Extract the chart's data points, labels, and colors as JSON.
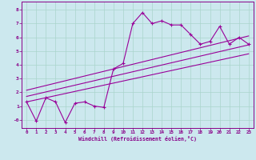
{
  "xlabel": "Windchill (Refroidissement éolien,°C)",
  "background_color": "#cce8ee",
  "grid_color": "#aad4cc",
  "line_color": "#990099",
  "spine_color": "#880088",
  "xlim": [
    -0.5,
    23.5
  ],
  "ylim": [
    -0.6,
    8.6
  ],
  "xticks": [
    0,
    1,
    2,
    3,
    4,
    5,
    6,
    7,
    8,
    9,
    10,
    11,
    12,
    13,
    14,
    15,
    16,
    17,
    18,
    19,
    20,
    21,
    22,
    23
  ],
  "yticks": [
    0,
    1,
    2,
    3,
    4,
    5,
    6,
    7,
    8
  ],
  "ytick_labels": [
    "-0",
    "1",
    "2",
    "3",
    "4",
    "5",
    "6",
    "7",
    "8"
  ],
  "data_x": [
    0,
    1,
    2,
    3,
    4,
    5,
    6,
    7,
    8,
    9,
    10,
    11,
    12,
    13,
    14,
    15,
    16,
    17,
    18,
    19,
    20,
    21,
    22,
    23
  ],
  "data_y": [
    1.3,
    -0.1,
    1.6,
    1.3,
    -0.2,
    1.2,
    1.3,
    1.0,
    0.9,
    3.7,
    4.1,
    7.0,
    7.8,
    7.0,
    7.2,
    6.9,
    6.9,
    6.2,
    5.5,
    5.7,
    6.8,
    5.5,
    6.0,
    5.5
  ],
  "line1_x": [
    0,
    23
  ],
  "line1_y": [
    1.3,
    4.8
  ],
  "line2_x": [
    0,
    23
  ],
  "line2_y": [
    2.15,
    6.1
  ],
  "line3_x": [
    0,
    23
  ],
  "line3_y": [
    1.7,
    5.45
  ]
}
